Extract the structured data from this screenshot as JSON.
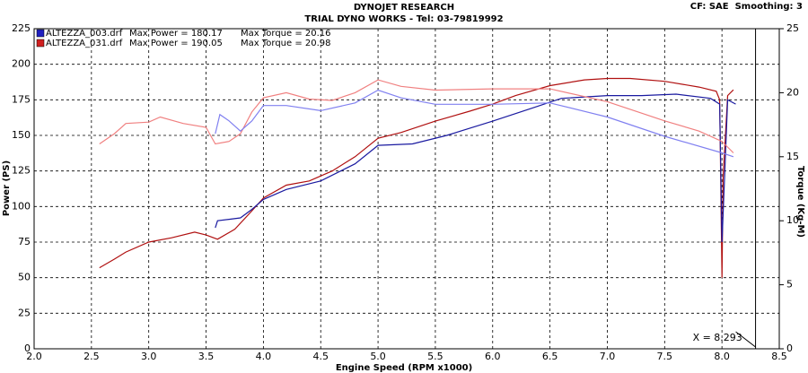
{
  "chart_data": {
    "type": "line",
    "title": "DYNOJET RESEARCH",
    "subtitle": "TRIAL DYNO WORKS - Tel: 03-79819992",
    "corner_note": "CF: SAE  Smoothing: 3",
    "x_label": "Engine Speed (RPM x1000)",
    "y_label": "Power (PS)",
    "y2_label": "Torque (Kg-M)",
    "legend": [
      {
        "file": "ALTEZZA_003.drf",
        "power": "Max Power = 180.17",
        "torque": "Max Torque = 20.16",
        "color": "#2020c0"
      },
      {
        "file": "ALTEZZA_031.drf",
        "power": "Max Power = 190.05",
        "torque": "Max Torque = 20.98",
        "color": "#d02020"
      }
    ],
    "annotation": "X = 8.293",
    "cursor_x": 8.293,
    "grid": true,
    "xlim": [
      2.0,
      8.5
    ],
    "xticks": [
      {
        "value": 2,
        "label": "2.0"
      },
      2.5,
      {
        "value": 3,
        "label": "3.0"
      },
      3.5,
      {
        "value": 4,
        "label": "4.0"
      },
      4.5,
      {
        "value": 5,
        "label": "5.0"
      },
      5.5,
      {
        "value": 6,
        "label": "6.0"
      },
      6.5,
      {
        "value": 7,
        "label": "7.0"
      },
      7.5,
      {
        "value": 8,
        "label": "8.0"
      },
      8.5
    ],
    "ylim": [
      0,
      225
    ],
    "yticks": [
      0,
      25,
      50,
      75,
      100,
      125,
      150,
      175,
      200,
      225
    ],
    "y2lim": [
      0,
      25
    ],
    "y2ticks": [
      0,
      5,
      10,
      15,
      20,
      25
    ],
    "series": [
      {
        "color": "#b01010",
        "axis": "y",
        "x": [
          2.57,
          2.7,
          2.8,
          3.0,
          3.2,
          3.4,
          3.5,
          3.6,
          3.75,
          3.9,
          4.0,
          4.2,
          4.4,
          4.6,
          4.8,
          5.0,
          5.2,
          5.5,
          5.8,
          6.0,
          6.2,
          6.5,
          6.8,
          7.0,
          7.2,
          7.5,
          7.8,
          7.95,
          7.98,
          8.0,
          8.01,
          8.05,
          8.1
        ],
        "values": [
          57,
          63,
          68,
          75,
          78,
          82,
          80,
          77,
          84,
          97,
          106,
          115,
          118,
          125,
          135,
          148,
          152,
          160,
          167,
          172,
          178,
          185,
          189,
          190,
          190,
          188,
          184,
          181,
          175,
          50,
          120,
          178,
          182
        ]
      },
      {
        "color": "#1a1aa0",
        "axis": "y",
        "x": [
          3.58,
          3.6,
          3.7,
          3.8,
          3.9,
          4.0,
          4.2,
          4.5,
          4.8,
          5.0,
          5.3,
          5.6,
          6.0,
          6.3,
          6.6,
          7.0,
          7.3,
          7.6,
          7.9,
          7.98,
          8.0,
          8.05,
          8.12
        ],
        "values": [
          85,
          90,
          91,
          92,
          98,
          105,
          112,
          118,
          130,
          143,
          144,
          150,
          160,
          168,
          176,
          178,
          178,
          179,
          176,
          172,
          75,
          175,
          172
        ]
      },
      {
        "color": "#f08080",
        "axis": "y2",
        "x": [
          2.57,
          2.7,
          2.8,
          3.0,
          3.1,
          3.3,
          3.5,
          3.58,
          3.7,
          3.8,
          3.9,
          4.0,
          4.2,
          4.4,
          4.6,
          4.8,
          5.0,
          5.2,
          5.5,
          6.0,
          6.5,
          7.0,
          7.5,
          7.8,
          8.0,
          8.1
        ],
        "values": [
          16.0,
          16.8,
          17.6,
          17.7,
          18.1,
          17.6,
          17.3,
          16.0,
          16.2,
          16.8,
          18.5,
          19.6,
          20.0,
          19.5,
          19.4,
          20.0,
          21.0,
          20.5,
          20.2,
          20.3,
          20.3,
          19.3,
          17.8,
          17.0,
          16.2,
          15.3
        ]
      },
      {
        "color": "#8080f0",
        "axis": "y2",
        "x": [
          3.58,
          3.62,
          3.7,
          3.8,
          3.9,
          4.0,
          4.2,
          4.5,
          4.8,
          5.0,
          5.2,
          5.5,
          6.0,
          6.5,
          7.0,
          7.5,
          8.0,
          8.1
        ],
        "values": [
          16.8,
          18.3,
          17.8,
          17.0,
          17.8,
          19.0,
          19.0,
          18.6,
          19.2,
          20.2,
          19.6,
          19.1,
          19.1,
          19.2,
          18.1,
          16.6,
          15.3,
          15.0
        ]
      }
    ]
  }
}
